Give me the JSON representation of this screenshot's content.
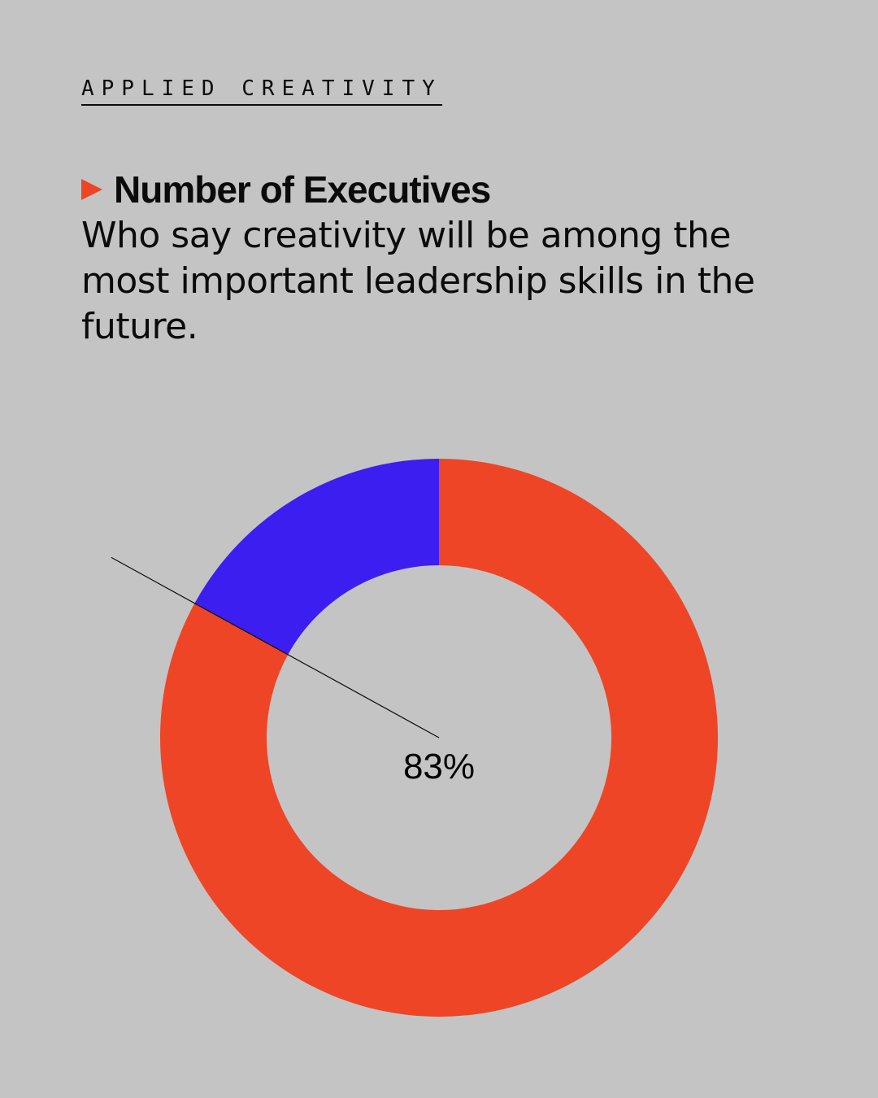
{
  "brand": {
    "label": "APPLIED CREATIVITY"
  },
  "headline": {
    "title": "Number of Executives"
  },
  "description": {
    "text": "Who say creativity will be among the most important leadership skills in the future."
  },
  "colors": {
    "background": "#c4c4c4",
    "primary": "#ee4526",
    "secondary": "#3d1ef0",
    "text": "#0b0b0b"
  },
  "chart_data": {
    "type": "pie",
    "donut": true,
    "title": "Number of Executives",
    "slices": [
      {
        "value": 83,
        "color": "#ee4526",
        "label": "83%"
      },
      {
        "value": 17,
        "color": "#3d1ef0",
        "label": ""
      }
    ],
    "legend": "none"
  }
}
